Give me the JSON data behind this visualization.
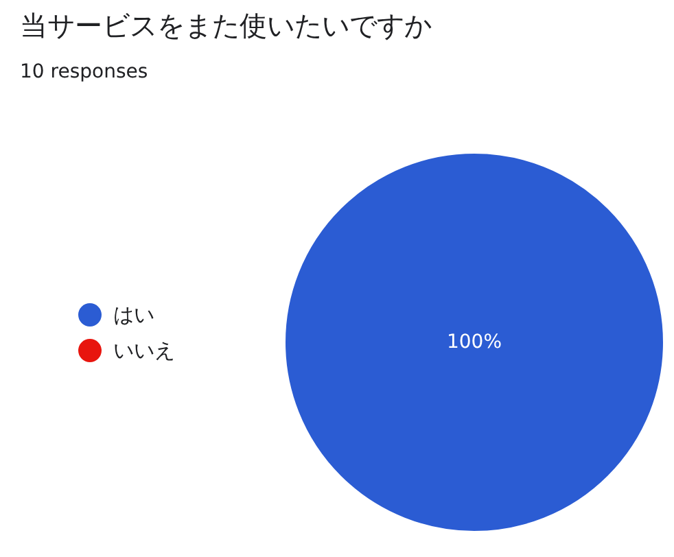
{
  "chart_data": {
    "type": "pie",
    "title": "当サービスをまた使いたいですか",
    "subtitle": "10 responses",
    "categories": [
      "はい",
      "いいえ"
    ],
    "values": [
      100,
      0
    ],
    "colors": [
      "#2b5cd3",
      "#e8150e"
    ],
    "value_labels": [
      "100%",
      null
    ],
    "legend": "left"
  }
}
